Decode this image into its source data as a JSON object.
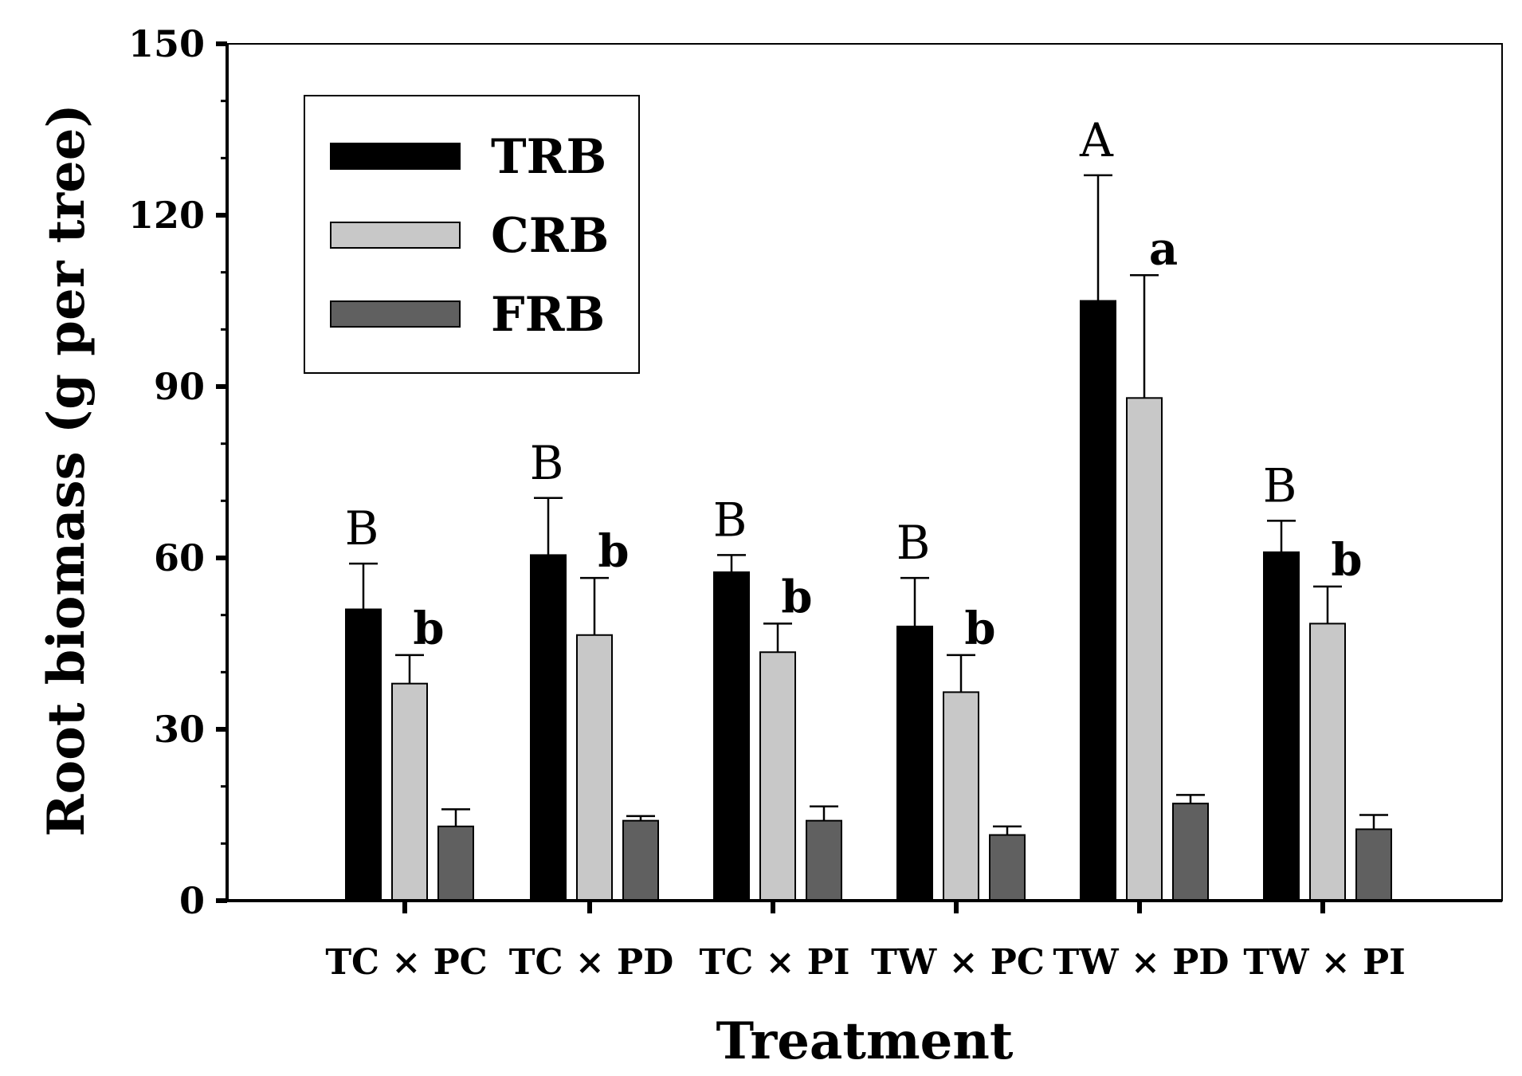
{
  "chart_data": {
    "type": "bar",
    "title": "",
    "xlabel": "Treatment",
    "ylabel": "Root biomass (g per tree)",
    "ylim": [
      0,
      150
    ],
    "yticks": [
      "0",
      "30",
      "60",
      "90",
      "120",
      "150"
    ],
    "ytick_values": [
      0,
      30,
      60,
      90,
      120,
      150
    ],
    "categories": [
      "TC × PC",
      "TC × PD",
      "TC × PI",
      "TW × PC",
      "TW × PD",
      "TW × PI"
    ],
    "series": [
      {
        "name": "TRB",
        "color": "#000000",
        "values": [
          51,
          60.5,
          57.5,
          48,
          105,
          61
        ],
        "errors": [
          8,
          10,
          3,
          8.5,
          22,
          5.5
        ],
        "letters": [
          "B",
          "B",
          "B",
          "B",
          "A",
          "B"
        ]
      },
      {
        "name": "CRB",
        "color": "#c8c8c8",
        "values": [
          38,
          46.5,
          43.5,
          36.5,
          88,
          48.5
        ],
        "errors": [
          5,
          10,
          5,
          6.5,
          21.5,
          6.5
        ],
        "letters": [
          "b",
          "b",
          "b",
          "b",
          "a",
          "b"
        ]
      },
      {
        "name": "FRB",
        "color": "#606060",
        "values": [
          13,
          14,
          14,
          11.5,
          17,
          12.5
        ],
        "errors": [
          3,
          0.8,
          2.5,
          1.5,
          1.5,
          2.5
        ],
        "letters": [
          "",
          "",
          "",
          "",
          "",
          ""
        ]
      }
    ],
    "legend": {
      "position": "top-left",
      "entries": [
        "TRB",
        "CRB",
        "FRB"
      ]
    },
    "grid": false
  }
}
